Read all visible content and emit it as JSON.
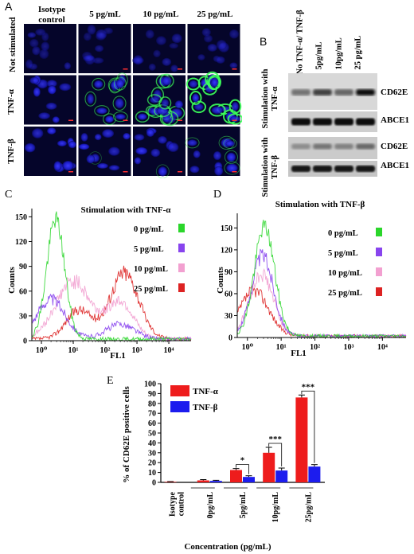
{
  "panelA": {
    "letter": "A",
    "columns": [
      "Isotype control",
      "5 pg/mL",
      "10 pg/mL",
      "25 pg/mL"
    ],
    "rows": [
      "Not stimulated",
      "TNF-α",
      "TNF-β"
    ],
    "green_intensity": [
      [
        0,
        0,
        0,
        0
      ],
      [
        0,
        0.35,
        0.6,
        0.95
      ],
      [
        0,
        0.05,
        0.12,
        0.22
      ]
    ]
  },
  "panelB": {
    "letter": "B",
    "lanes": [
      "No TNF-α/ TNF-β",
      "5pg/mL",
      "10pg/mL",
      "25 pg/mL"
    ],
    "groups": [
      {
        "label": "Stimulation with TNF-α",
        "bands": [
          "CD62E",
          "ABCE1"
        ]
      },
      {
        "label": "Stimulation with TNF-β",
        "bands": [
          "CD62E",
          "ABCE1"
        ]
      }
    ]
  },
  "panelC": {
    "letter": "C",
    "title": "Stimulation with TNF-α",
    "xlabel": "FL1",
    "ylabel": "Counts",
    "yticks": [
      0,
      30,
      60,
      90,
      120,
      150
    ],
    "xticks": [
      "10⁰",
      "10¹",
      "10²",
      "10³",
      "10⁴"
    ],
    "legend": [
      {
        "label": "0 pg/mL",
        "color": "#2bd62b"
      },
      {
        "label": "5 pg/mL",
        "color": "#8844ee"
      },
      {
        "label": "10 pg/mL",
        "color": "#f2a0d0"
      },
      {
        "label": "25 pg/mL",
        "color": "#dd2222"
      }
    ]
  },
  "panelD": {
    "letter": "D",
    "title": "Stimulation with TNF-β",
    "xlabel": "FL1",
    "ylabel": "Counts",
    "yticks": [
      0,
      30,
      60,
      90,
      120,
      150
    ],
    "xticks": [
      "10⁰",
      "10¹",
      "10²",
      "10³",
      "10⁴"
    ],
    "legend": [
      {
        "label": "0 pg/mL",
        "color": "#2bd62b"
      },
      {
        "label": "5 pg/mL",
        "color": "#8844ee"
      },
      {
        "label": "10 pg/mL",
        "color": "#f2a0d0"
      },
      {
        "label": "25 pg/mL",
        "color": "#dd2222"
      }
    ]
  },
  "panelE": {
    "letter": "E",
    "ylabel": "% of CD62E positive cells",
    "xlabel": "Concentration (pg/mL)",
    "yticks": [
      0,
      10,
      20,
      30,
      40,
      50,
      60,
      70,
      80,
      90,
      100
    ],
    "legend": [
      {
        "label": "TNF-α",
        "color": "#ee1c1c"
      },
      {
        "label": "TNF-β",
        "color": "#1c1cee"
      }
    ],
    "significance": [
      "*",
      "***",
      "***"
    ]
  },
  "chart_data": [
    {
      "type": "line",
      "panel": "C",
      "title": "Stimulation with TNF-α",
      "xlabel": "FL1",
      "ylabel": "Counts",
      "xscale": "log",
      "xlim": [
        0.5,
        50000
      ],
      "ylim": [
        0,
        160
      ],
      "series": [
        {
          "name": "0 pg/mL",
          "color": "#2bd62b",
          "peaks": [
            {
              "x": 2.8,
              "y": 145,
              "w": 0.28
            }
          ]
        },
        {
          "name": "5 pg/mL",
          "color": "#8844ee",
          "peaks": [
            {
              "x": 2,
              "y": 48,
              "w": 0.45
            },
            {
              "x": 300,
              "y": 18,
              "w": 0.45
            }
          ]
        },
        {
          "name": "10 pg/mL",
          "color": "#f2a0d0",
          "peaks": [
            {
              "x": 10,
              "y": 70,
              "w": 0.55
            },
            {
              "x": 300,
              "y": 45,
              "w": 0.4
            }
          ]
        },
        {
          "name": "25 pg/mL",
          "color": "#dd2222",
          "peaks": [
            {
              "x": 400,
              "y": 80,
              "w": 0.45
            },
            {
              "x": 15,
              "y": 35,
              "w": 0.4
            }
          ]
        }
      ]
    },
    {
      "type": "line",
      "panel": "D",
      "title": "Stimulation with TNF-β",
      "xlabel": "FL1",
      "ylabel": "Counts",
      "xscale": "log",
      "xlim": [
        0.5,
        50000
      ],
      "ylim": [
        0,
        170
      ],
      "series": [
        {
          "name": "0 pg/mL",
          "color": "#2bd62b",
          "peaks": [
            {
              "x": 3.2,
              "y": 150,
              "w": 0.3
            }
          ]
        },
        {
          "name": "5 pg/mL",
          "color": "#8844ee",
          "peaks": [
            {
              "x": 2.8,
              "y": 110,
              "w": 0.32
            }
          ]
        },
        {
          "name": "10 pg/mL",
          "color": "#f2a0d0",
          "peaks": [
            {
              "x": 2.6,
              "y": 85,
              "w": 0.35
            }
          ]
        },
        {
          "name": "25 pg/mL",
          "color": "#dd2222",
          "peaks": [
            {
              "x": 1.6,
              "y": 62,
              "w": 0.42
            }
          ]
        }
      ]
    },
    {
      "type": "bar",
      "panel": "E",
      "categories": [
        "Isotype control",
        "0pg/mL",
        "5pg/mL",
        "10pg/mL",
        "25pg/mL"
      ],
      "xlabel": "Concentration (pg/mL)",
      "ylabel": "% of CD62E positive cells",
      "ylim": [
        0,
        100
      ],
      "series": [
        {
          "name": "TNF-α",
          "color": "#ee1c1c",
          "values": [
            0.5,
            2.0,
            12.5,
            30,
            86
          ],
          "errors": [
            0.3,
            0.8,
            1.5,
            5.5,
            2.5
          ]
        },
        {
          "name": "TNF-β",
          "color": "#1c1cee",
          "values": [
            0,
            1.5,
            5.5,
            12,
            16
          ],
          "errors": [
            0,
            0.6,
            1.2,
            2.5,
            2.0
          ]
        }
      ]
    }
  ]
}
